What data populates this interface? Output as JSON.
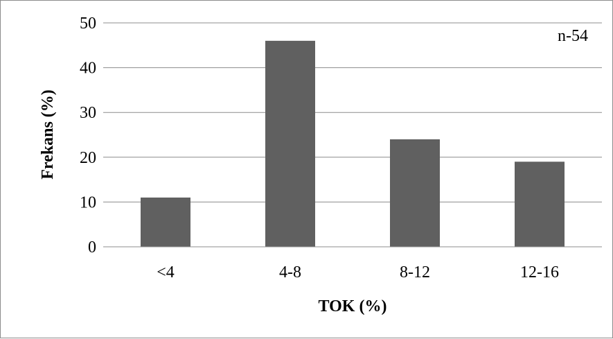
{
  "chart_data": {
    "type": "bar",
    "categories": [
      "<4",
      "4-8",
      "8-12",
      "12-16"
    ],
    "values": [
      11,
      46,
      24,
      19
    ],
    "title": "",
    "xlabel": "TOK (%)",
    "ylabel": "Frekans (%)",
    "ylim": [
      0,
      50
    ],
    "yticks": [
      0,
      10,
      20,
      30,
      40,
      50
    ],
    "grid": true,
    "legend": "none",
    "bar_color": "#606060",
    "annotation": "n-54"
  }
}
